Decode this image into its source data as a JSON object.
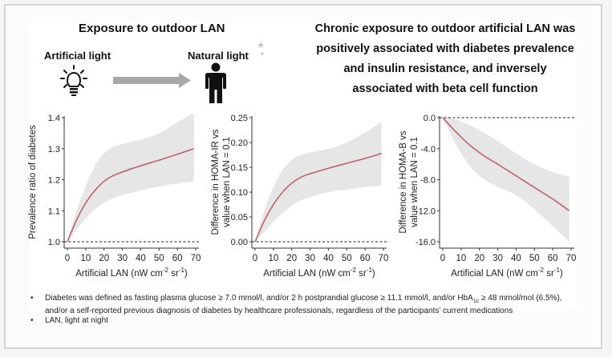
{
  "header": {
    "left_title": "Exposure to outdoor LAN",
    "artificial_label": "Artificial light",
    "natural_label": "Natural light",
    "right_title_lines": [
      "Chronic exposure to outdoor artificial LAN was",
      "positively associated with diabetes prevalence",
      "and insulin resistance, and inversely",
      "associated with beta cell function"
    ]
  },
  "icons": [
    "lightbulb-icon",
    "arrow-right-icon",
    "person-icon",
    "moon-stars-icon"
  ],
  "colors": {
    "line": "#c0616e",
    "band": "#e6e6e6",
    "axis": "#333333",
    "arrow": "#a8a8a8"
  },
  "footnotes": {
    "bullet": "•",
    "diabetes_def_line1_a": "Diabetes was defined as fasting plasma glucose ≥ 7.0 mmol/l, and/or 2 h postprandial glucose ≥ 11.1 mmol/l, and/or HbA",
    "diabetes_def_line1_sub": "1c",
    "diabetes_def_line1_b": " ≥ 48 mmol/mol (6.5%),",
    "diabetes_def_line2": "and/or a self-reported previous diagnosis of diabetes by healthcare professionals, regardless of the participants’ current medications",
    "lan_def": "LAN, light at night"
  },
  "chart_data": [
    {
      "type": "line",
      "title": "",
      "xlabel": "Artificial LAN (nW cm-2 sr-1)",
      "ylabel": "Prevalence ratio of diabetes",
      "ylabel_lines": [
        "Prevalence ratio of diabetes"
      ],
      "xlim": [
        0,
        70
      ],
      "ylim": [
        1.0,
        1.4
      ],
      "xticks": [
        0,
        10,
        20,
        30,
        40,
        50,
        60,
        70
      ],
      "xtick_labels": [
        "0",
        "10",
        "20",
        "30",
        "40",
        "50",
        "60",
        "70"
      ],
      "yticks": [
        1.0,
        1.1,
        1.2,
        1.3,
        1.4
      ],
      "ytick_labels": [
        "1.0",
        "1.1",
        "1.2",
        "1.3",
        "1.4"
      ],
      "reference_line": 1.0,
      "x": [
        0,
        5,
        10,
        15,
        20,
        25,
        30,
        40,
        50,
        60,
        69
      ],
      "series": [
        {
          "name": "estimate",
          "values": [
            1.0,
            1.07,
            1.125,
            1.165,
            1.195,
            1.213,
            1.225,
            1.245,
            1.263,
            1.282,
            1.3
          ]
        },
        {
          "name": "lower",
          "values": [
            1.0,
            1.04,
            1.075,
            1.105,
            1.125,
            1.14,
            1.15,
            1.165,
            1.178,
            1.188,
            1.195
          ]
        },
        {
          "name": "upper",
          "values": [
            1.0,
            1.1,
            1.18,
            1.245,
            1.285,
            1.305,
            1.315,
            1.33,
            1.35,
            1.385,
            1.415
          ]
        }
      ],
      "grid": false
    },
    {
      "type": "line",
      "title": "",
      "xlabel": "Artificial LAN (nW cm-2 sr-1)",
      "ylabel": "Difference in HOMA-IR vs value when LAN = 0.1",
      "ylabel_lines": [
        "Difference in HOMA-IR vs",
        "value when LAN = 0.1"
      ],
      "xlim": [
        0,
        70
      ],
      "ylim": [
        0.0,
        0.25
      ],
      "xticks": [
        0,
        10,
        20,
        30,
        40,
        50,
        60,
        70
      ],
      "xtick_labels": [
        "0",
        "10",
        "20",
        "30",
        "40",
        "50",
        "60",
        "70"
      ],
      "yticks": [
        0.0,
        0.05,
        0.1,
        0.15,
        0.2,
        0.25
      ],
      "ytick_labels": [
        "0.00",
        "0.05",
        "0.10",
        "0.15",
        "0.20",
        "0.25"
      ],
      "reference_line": 0.0,
      "x": [
        0,
        5,
        10,
        15,
        20,
        25,
        30,
        40,
        50,
        60,
        69
      ],
      "series": [
        {
          "name": "estimate",
          "values": [
            0.0,
            0.042,
            0.075,
            0.1,
            0.118,
            0.13,
            0.137,
            0.148,
            0.158,
            0.168,
            0.178
          ]
        },
        {
          "name": "lower",
          "values": [
            0.0,
            0.02,
            0.04,
            0.058,
            0.072,
            0.083,
            0.09,
            0.1,
            0.105,
            0.11,
            0.113
          ]
        },
        {
          "name": "upper",
          "values": [
            0.0,
            0.062,
            0.11,
            0.145,
            0.165,
            0.175,
            0.18,
            0.187,
            0.2,
            0.22,
            0.242
          ]
        }
      ],
      "grid": false
    },
    {
      "type": "line",
      "title": "",
      "xlabel": "Artificial LAN (nW cm-2 sr-1)",
      "ylabel": "Difference in HOMA-B vs value when LAN = 0.1",
      "ylabel_lines": [
        "Difference in HOMA-B vs",
        "value when LAN = 0.1"
      ],
      "xlim": [
        0,
        70
      ],
      "ylim": [
        -16.0,
        0.0
      ],
      "xticks": [
        0,
        10,
        20,
        30,
        40,
        50,
        60,
        70
      ],
      "xtick_labels": [
        "0",
        "10",
        "20",
        "30",
        "40",
        "50",
        "60",
        "70"
      ],
      "yticks": [
        0.0,
        -4.0,
        -8.0,
        -12.0,
        -16.0
      ],
      "ytick_labels": [
        "0.0",
        "-4.0",
        "-8.0",
        "-12.0",
        "-16.0"
      ],
      "reference_line": 0.0,
      "x": [
        0,
        5,
        10,
        15,
        20,
        25,
        30,
        40,
        50,
        60,
        69
      ],
      "series": [
        {
          "name": "estimate",
          "values": [
            0.0,
            -1.3,
            -2.5,
            -3.6,
            -4.5,
            -5.3,
            -6.0,
            -7.5,
            -9.0,
            -10.5,
            -12.0
          ]
        },
        {
          "name": "lower",
          "values": [
            0.0,
            -2.5,
            -4.6,
            -6.3,
            -7.5,
            -8.3,
            -8.9,
            -10.0,
            -11.8,
            -14.0,
            -16.0
          ]
        },
        {
          "name": "upper",
          "values": [
            0.0,
            -0.1,
            -0.5,
            -1.0,
            -1.6,
            -2.3,
            -3.0,
            -4.6,
            -6.0,
            -7.0,
            -7.6
          ]
        }
      ],
      "grid": false
    }
  ]
}
